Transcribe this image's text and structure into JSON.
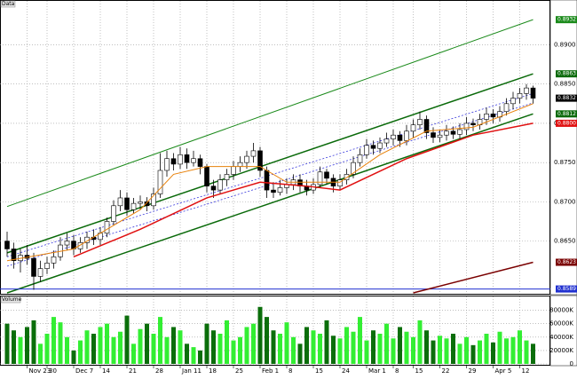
{
  "chart_data": {
    "type": "candlestick",
    "title": "Data",
    "categories": [
      null,
      null,
      null,
      "Nov 23",
      null,
      null,
      "30",
      null,
      null,
      null,
      "Dec 7",
      null,
      null,
      null,
      "14",
      null,
      null,
      null,
      "21",
      null,
      null,
      null,
      "28",
      null,
      null,
      null,
      "Jan 11",
      null,
      null,
      null,
      "18",
      null,
      null,
      null,
      "25",
      null,
      null,
      null,
      "Feb 1",
      null,
      null,
      null,
      "8",
      null,
      null,
      null,
      "15",
      null,
      null,
      null,
      "24",
      null,
      null,
      null,
      "Mar 1",
      null,
      null,
      null,
      "8",
      null,
      null,
      "15",
      null,
      null,
      null,
      "22",
      null,
      null,
      null,
      "29",
      null,
      null,
      null,
      "Apr 5",
      null,
      null,
      null,
      "12",
      null,
      null
    ],
    "open": [
      0.865,
      0.864,
      0.8625,
      0.8632,
      0.8628,
      0.8605,
      0.8615,
      0.8622,
      0.863,
      0.8645,
      0.865,
      0.864,
      0.8648,
      0.8655,
      0.8652,
      0.866,
      0.8675,
      0.8695,
      0.8705,
      0.869,
      0.8698,
      0.87,
      0.8695,
      0.871,
      0.874,
      0.8755,
      0.8748,
      0.876,
      0.875,
      0.8755,
      0.8745,
      0.872,
      0.8715,
      0.8728,
      0.8735,
      0.8745,
      0.875,
      0.8758,
      0.8765,
      0.874,
      0.8715,
      0.8712,
      0.8718,
      0.8722,
      0.8728,
      0.872,
      0.8715,
      0.8722,
      0.8738,
      0.873,
      0.872,
      0.8728,
      0.8735,
      0.875,
      0.876,
      0.8772,
      0.8768,
      0.8775,
      0.878,
      0.8785,
      0.8778,
      0.879,
      0.8798,
      0.8805,
      0.8788,
      0.8782,
      0.8785,
      0.879,
      0.8786,
      0.8792,
      0.88,
      0.8798,
      0.8805,
      0.8812,
      0.8808,
      0.8815,
      0.8825,
      0.8832,
      0.8838,
      0.8845
    ],
    "high": [
      0.8662,
      0.8648,
      0.864,
      0.8645,
      0.8635,
      0.8625,
      0.863,
      0.8638,
      0.8655,
      0.866,
      0.8658,
      0.8655,
      0.8662,
      0.8665,
      0.8668,
      0.868,
      0.8702,
      0.8715,
      0.8712,
      0.8705,
      0.8708,
      0.8706,
      0.8718,
      0.8762,
      0.8765,
      0.8762,
      0.877,
      0.8768,
      0.8765,
      0.876,
      0.8748,
      0.8728,
      0.8735,
      0.8742,
      0.8752,
      0.8758,
      0.8765,
      0.8775,
      0.877,
      0.8745,
      0.8725,
      0.8728,
      0.873,
      0.8735,
      0.8735,
      0.8728,
      0.873,
      0.8745,
      0.8742,
      0.8735,
      0.8735,
      0.8742,
      0.8758,
      0.8768,
      0.878,
      0.8778,
      0.8782,
      0.8788,
      0.8792,
      0.879,
      0.8798,
      0.8805,
      0.8815,
      0.881,
      0.8795,
      0.8792,
      0.8798,
      0.8796,
      0.88,
      0.8808,
      0.8806,
      0.8812,
      0.882,
      0.8818,
      0.8822,
      0.8832,
      0.884,
      0.8845,
      0.885,
      0.8848
    ],
    "low": [
      0.863,
      0.8615,
      0.861,
      0.862,
      0.8588,
      0.8598,
      0.8608,
      0.8615,
      0.8625,
      0.8638,
      0.8632,
      0.8635,
      0.864,
      0.8645,
      0.8645,
      0.8655,
      0.867,
      0.8688,
      0.8682,
      0.8685,
      0.869,
      0.8688,
      0.869,
      0.8705,
      0.8732,
      0.874,
      0.8742,
      0.8742,
      0.8745,
      0.8735,
      0.8712,
      0.8705,
      0.871,
      0.872,
      0.8728,
      0.8738,
      0.8742,
      0.875,
      0.8732,
      0.8705,
      0.8705,
      0.8708,
      0.871,
      0.8715,
      0.8712,
      0.8708,
      0.871,
      0.8718,
      0.8722,
      0.8712,
      0.8715,
      0.8722,
      0.873,
      0.8745,
      0.8755,
      0.876,
      0.8762,
      0.877,
      0.8772,
      0.877,
      0.8772,
      0.8782,
      0.8792,
      0.878,
      0.8775,
      0.8776,
      0.8778,
      0.878,
      0.878,
      0.8785,
      0.879,
      0.8792,
      0.8798,
      0.88,
      0.8802,
      0.881,
      0.8818,
      0.8825,
      0.883,
      0.8825
    ],
    "close": [
      0.864,
      0.8625,
      0.8632,
      0.8628,
      0.8605,
      0.8615,
      0.8622,
      0.863,
      0.8645,
      0.865,
      0.864,
      0.8648,
      0.8655,
      0.8652,
      0.866,
      0.8675,
      0.8695,
      0.8705,
      0.869,
      0.8698,
      0.87,
      0.8695,
      0.871,
      0.874,
      0.8755,
      0.8748,
      0.876,
      0.875,
      0.8755,
      0.8745,
      0.872,
      0.8715,
      0.8728,
      0.8735,
      0.8745,
      0.875,
      0.8758,
      0.8765,
      0.874,
      0.8715,
      0.8712,
      0.8718,
      0.8722,
      0.8728,
      0.872,
      0.8715,
      0.8722,
      0.8738,
      0.873,
      0.872,
      0.8728,
      0.8735,
      0.875,
      0.876,
      0.8772,
      0.8768,
      0.8775,
      0.878,
      0.8785,
      0.8778,
      0.879,
      0.8798,
      0.8805,
      0.8788,
      0.8782,
      0.8785,
      0.879,
      0.8786,
      0.8792,
      0.88,
      0.8798,
      0.8805,
      0.8812,
      0.8808,
      0.8815,
      0.8825,
      0.8832,
      0.8838,
      0.8845,
      0.8832
    ],
    "up_color": "#ffffff",
    "down_color": "#000000",
    "ylim": [
      0.8584,
      0.8948
    ],
    "yticks": [
      {
        "value": 0.865,
        "label": "0.8650"
      },
      {
        "value": 0.87,
        "label": "0.8700"
      },
      {
        "value": 0.875,
        "label": "0.8750"
      },
      {
        "value": 0.88,
        "label": "0.8800"
      },
      {
        "value": 0.885,
        "label": "0.8850"
      },
      {
        "value": 0.89,
        "label": "0.8900"
      }
    ],
    "grid": true,
    "overlays": [
      {
        "color": "#e8820c",
        "width": 1,
        "x": [
          0,
          10,
          20,
          25,
          30,
          38,
          42,
          50,
          56,
          63,
          70,
          79
        ],
        "values": [
          0.8625,
          0.864,
          0.869,
          0.8735,
          0.8745,
          0.8745,
          0.8725,
          0.8725,
          0.876,
          0.879,
          0.8795,
          0.8825
        ]
      },
      {
        "color": "#e01010",
        "width": 1.5,
        "x": [
          10,
          20,
          30,
          38,
          45,
          50,
          60,
          70,
          79
        ],
        "values": [
          0.863,
          0.8665,
          0.8705,
          0.8725,
          0.872,
          0.8715,
          0.8755,
          0.8785,
          0.88
        ]
      },
      {
        "color": "#7a0000",
        "width": 1.5,
        "x": [
          61,
          79
        ],
        "values": [
          0.8584,
          0.8623
        ]
      }
    ],
    "channels": [
      {
        "color": "#1a8a1a",
        "width": 1,
        "dash": false,
        "x": [
          0,
          79
        ],
        "values": [
          0.8694,
          0.8932
        ]
      },
      {
        "color": "#0a6a0a",
        "width": 1.5,
        "dash": false,
        "x": [
          0,
          79
        ],
        "values": [
          0.8635,
          0.8863
        ]
      },
      {
        "color": "#3a3adc",
        "width": 0.8,
        "dash": true,
        "x": [
          0,
          79
        ],
        "values": [
          0.863,
          0.8838
        ]
      },
      {
        "color": "#3a3adc",
        "width": 0.8,
        "dash": true,
        "x": [
          0,
          79
        ],
        "values": [
          0.8618,
          0.8826
        ]
      },
      {
        "color": "#0a6a0a",
        "width": 1.5,
        "dash": false,
        "x": [
          0,
          79
        ],
        "values": [
          0.8584,
          0.8812
        ]
      }
    ],
    "hline": {
      "value": 0.8589,
      "color": "#2030d0"
    },
    "price_tags": [
      {
        "value": 0.8932,
        "label": "0.8932",
        "color": "#1a8a1a"
      },
      {
        "value": 0.8863,
        "label": "0.8863",
        "color": "#0a6a0a"
      },
      {
        "value": 0.8832,
        "label": "0.8832",
        "color": "#000000"
      },
      {
        "value": 0.8812,
        "label": "0.8812",
        "color": "#0a6a0a"
      },
      {
        "value": 0.88,
        "label": "0.8800",
        "color": "#e01010"
      },
      {
        "value": 0.8623,
        "label": "0.8623",
        "color": "#7a0000"
      },
      {
        "value": 0.8589,
        "label": "0.8589",
        "color": "#2030d0"
      }
    ],
    "volume": {
      "title": "Volume",
      "values": [
        60000,
        50000,
        40000,
        55000,
        65000,
        30000,
        45000,
        70000,
        62000,
        40000,
        20000,
        35000,
        50000,
        45000,
        55000,
        60000,
        40000,
        48000,
        72000,
        30000,
        52000,
        60000,
        45000,
        70000,
        40000,
        55000,
        50000,
        30000,
        25000,
        20000,
        60000,
        50000,
        45000,
        65000,
        35000,
        40000,
        55000,
        60000,
        85000,
        70000,
        50000,
        45000,
        62000,
        40000,
        30000,
        55000,
        50000,
        45000,
        65000,
        42000,
        38000,
        55000,
        48000,
        70000,
        35000,
        50000,
        45000,
        60000,
        38000,
        55000,
        48000,
        40000,
        65000,
        50000,
        35000,
        42000,
        38000,
        45000,
        30000,
        40000,
        28000,
        35000,
        45000,
        32000,
        48000,
        38000,
        40000,
        50000,
        35000,
        30000
      ],
      "up_color": "#33ee33",
      "down_color": "#0b6e0b",
      "ylim": [
        0,
        90000
      ],
      "yticks": [
        0,
        {
          "value": 20000,
          "label": "20000K"
        },
        {
          "value": 40000,
          "label": "40000K"
        },
        {
          "value": 60000,
          "label": "60000K"
        },
        {
          "value": 80000,
          "label": "80000K"
        }
      ]
    }
  }
}
